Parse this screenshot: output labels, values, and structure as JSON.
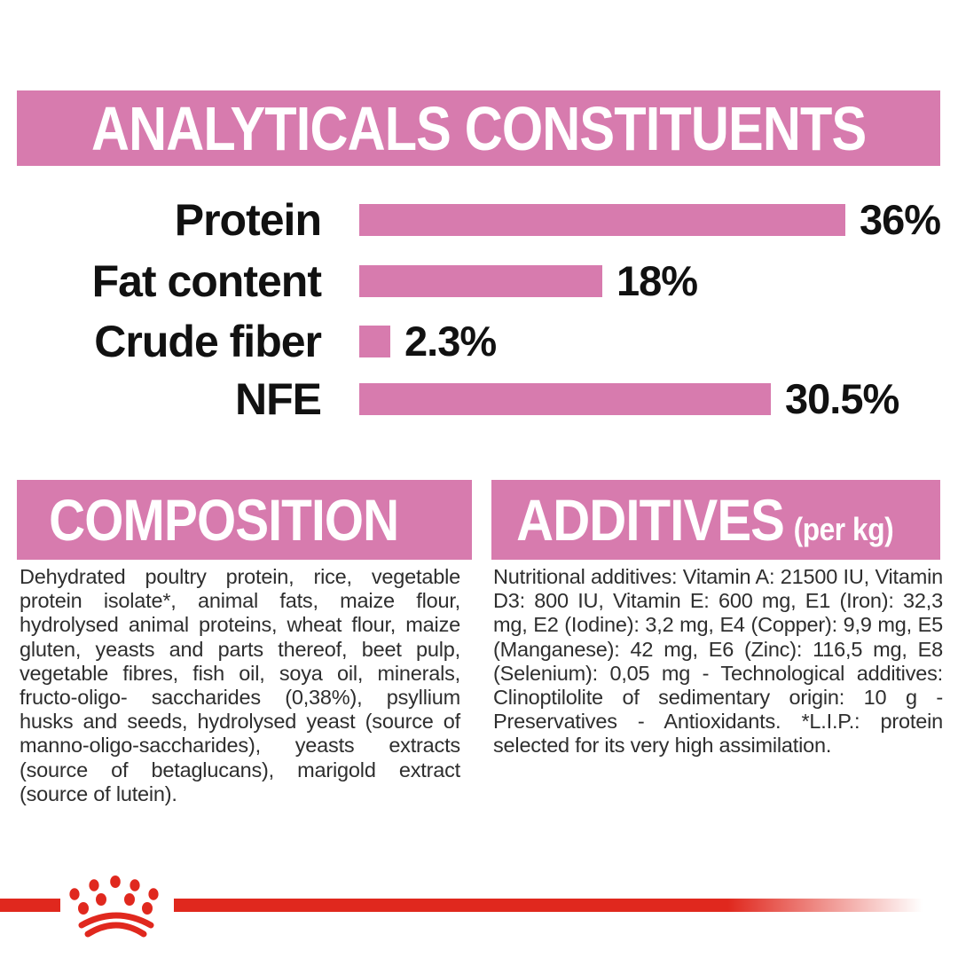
{
  "header": {
    "title": "ANALYTICALS CONSTITUENTS"
  },
  "chart_data": {
    "type": "bar",
    "orientation": "horizontal",
    "categories": [
      "Protein",
      "Fat content",
      "Crude fiber",
      "NFE"
    ],
    "values": [
      36,
      18,
      2.3,
      30.5
    ],
    "value_labels": [
      "36%",
      "18%",
      "2.3%",
      "30.5%"
    ],
    "unit": "%",
    "xlim": [
      0,
      36
    ],
    "bar_color": "#d77bae",
    "title": "ANALYTICALS CONSTITUENTS",
    "xlabel": "",
    "ylabel": "",
    "grid": false,
    "legend": false
  },
  "composition": {
    "title": "COMPOSITION",
    "body": "Dehydrated poultry protein, rice, vegetable protein isolate*, animal fats, maize flour, hydrolysed animal proteins, wheat flour, maize gluten, yeasts and parts thereof, beet pulp, vegetable fibres, fish oil, soya oil, minerals, fructo-oligo- saccharides (0,38%), psyllium husks and seeds, hydrolysed yeast (source of manno-oligo-saccharides), yeasts extracts (source of betaglucans), marigold extract (source of lutein)."
  },
  "additives": {
    "title": "ADDITIVES",
    "title_suffix": "(per kg)",
    "body": "Nutritional additives: Vitamin A: 21500 IU, Vitamin D3: 800 IU, Vitamin E: 600 mg, E1 (Iron): 32,3 mg, E2 (Iodine): 3,2 mg, E4 (Copper): 9,9 mg, E5 (Manganese): 42 mg, E6 (Zinc): 116,5 mg, E8 (Selenium): 0,05 mg - Technological additives: Clinoptilolite of sedimentary origin: 10 g - Preservatives - Antioxidants. *L.I.P.: protein selected for its very high assimilation."
  },
  "footer": {
    "logo_name": "royal-canin-crown-paw-logo",
    "logo_color": "#e0281e"
  },
  "colors": {
    "banner_pink": "#d77bae",
    "bar_pink": "#d77bae",
    "accent_red": "#e0281e",
    "heading_text": "#ffffff",
    "label_text": "#111111",
    "body_text": "#2e2e2e",
    "background": "#ffffff"
  }
}
